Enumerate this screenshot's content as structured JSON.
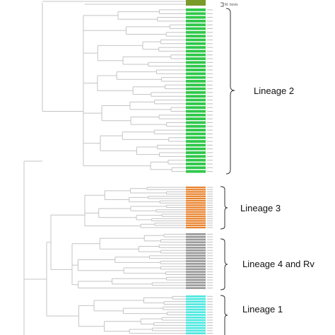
{
  "colors": {
    "branch": "#c4c4c4",
    "bracket": "#333333",
    "tip_label": "#bdbdbd",
    "lineage_2": "#2fc84a",
    "lineage_3": "#e8822c",
    "lineage_4_and_rv": "#9a9a9a",
    "lineage_1": "#4de8e0",
    "top_strip": "#7a9a2a"
  },
  "top_note": "M. bovis",
  "lineages": [
    {
      "id": "lineage_2",
      "label": "Lineage 2",
      "strips": 44,
      "color_key": "lineage_2"
    },
    {
      "id": "lineage_3",
      "label": "Lineage 3",
      "strips": 19,
      "color_key": "lineage_3"
    },
    {
      "id": "lineage_4_and_rv",
      "label": "Lineage 4 and Rv",
      "strips": 21,
      "color_key": "lineage_4_and_rv"
    },
    {
      "id": "lineage_1",
      "label": "Lineage 1",
      "strips": 15,
      "color_key": "lineage_1"
    }
  ]
}
